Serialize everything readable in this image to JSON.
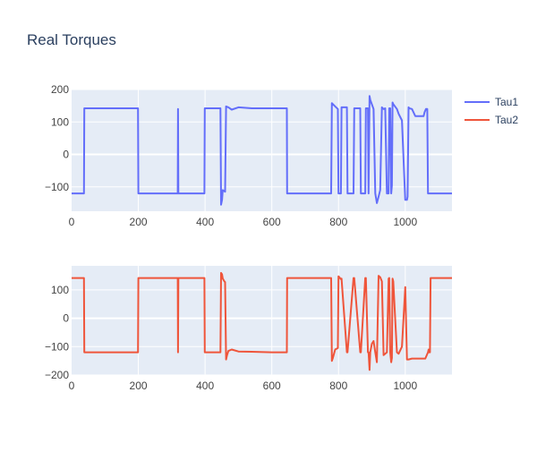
{
  "title": "Real Torques",
  "legend_position": "top-right",
  "chart_data": [
    {
      "type": "line",
      "grid": true,
      "xlim": [
        0,
        1140
      ],
      "ylim": [
        -175,
        200
      ],
      "x_ticks": [
        "0",
        "200",
        "400",
        "600",
        "800",
        "1000"
      ],
      "y_ticks": [
        "200",
        "100",
        "0",
        "−100"
      ],
      "series": [
        {
          "name": "Tau1",
          "color": "#636EFA",
          "x": [
            0,
            37,
            38,
            100,
            199,
            200,
            318,
            319,
            320,
            321,
            322,
            398,
            399,
            446,
            448,
            451,
            453,
            460,
            463,
            470,
            480,
            500,
            540,
            600,
            645,
            646,
            778,
            780,
            790,
            798,
            800,
            807,
            809,
            825,
            827,
            845,
            847,
            865,
            867,
            880,
            882,
            888,
            890,
            893,
            895,
            905,
            910,
            915,
            920,
            925,
            930,
            935,
            940,
            945,
            950,
            952,
            955,
            958,
            960,
            962,
            964,
            975,
            980,
            990,
            1000,
            1005,
            1007,
            1010,
            1012,
            1020,
            1030,
            1040,
            1050,
            1055,
            1058,
            1062,
            1066,
            1068,
            1070,
            1072,
            1074,
            1076,
            1100,
            1140
          ],
          "y": [
            -120,
            -120,
            142,
            142,
            142,
            -120,
            -120,
            140,
            -120,
            -120,
            -120,
            -120,
            142,
            142,
            -155,
            -140,
            -110,
            -115,
            148,
            145,
            138,
            145,
            142,
            142,
            142,
            -120,
            -120,
            158,
            148,
            140,
            -120,
            -120,
            145,
            145,
            -120,
            -120,
            142,
            142,
            -120,
            -120,
            142,
            142,
            -120,
            180,
            168,
            140,
            -120,
            -150,
            -130,
            -110,
            145,
            140,
            142,
            -120,
            -120,
            142,
            142,
            -120,
            -95,
            160,
            155,
            140,
            125,
            105,
            -140,
            -140,
            -130,
            145,
            142,
            140,
            118,
            118,
            118,
            118,
            130,
            140,
            140,
            -120,
            -120,
            -120,
            -120,
            -120,
            -120,
            -120
          ]
        }
      ]
    },
    {
      "type": "line",
      "grid": true,
      "xlim": [
        0,
        1140
      ],
      "ylim": [
        -200,
        185
      ],
      "x_ticks": [
        "0",
        "200",
        "400",
        "600",
        "800",
        "1000"
      ],
      "y_ticks": [
        "100",
        "0",
        "−100",
        "−200"
      ],
      "series": [
        {
          "name": "Tau2",
          "color": "#EF553B",
          "x": [
            0,
            37,
            38,
            100,
            199,
            200,
            318,
            319,
            320,
            321,
            322,
            398,
            399,
            446,
            448,
            451,
            453,
            458,
            460,
            463,
            466,
            470,
            480,
            500,
            540,
            600,
            645,
            646,
            778,
            780,
            783,
            790,
            798,
            800,
            807,
            809,
            825,
            827,
            845,
            847,
            865,
            867,
            880,
            882,
            888,
            890,
            893,
            895,
            900,
            905,
            910,
            915,
            920,
            925,
            930,
            935,
            940,
            945,
            950,
            952,
            955,
            958,
            960,
            962,
            964,
            975,
            980,
            990,
            1000,
            1005,
            1010,
            1020,
            1040,
            1060,
            1068,
            1070,
            1072,
            1074,
            1076,
            1100,
            1140
          ],
          "y": [
            142,
            142,
            -120,
            -120,
            -120,
            142,
            142,
            -120,
            142,
            142,
            142,
            142,
            -120,
            -120,
            160,
            155,
            140,
            130,
            128,
            -145,
            -130,
            -115,
            -110,
            -117,
            -118,
            -120,
            -120,
            142,
            142,
            -150,
            -140,
            -110,
            -105,
            148,
            138,
            140,
            -120,
            -120,
            142,
            142,
            -120,
            -120,
            142,
            142,
            -120,
            -120,
            -182,
            -120,
            -90,
            -80,
            -120,
            -155,
            150,
            145,
            130,
            -130,
            -125,
            -120,
            140,
            142,
            -120,
            -155,
            -140,
            140,
            130,
            -120,
            -125,
            -100,
            110,
            -145,
            -145,
            -142,
            -142,
            -142,
            -120,
            -110,
            -120,
            -120,
            142,
            142,
            142
          ]
        }
      ]
    }
  ]
}
